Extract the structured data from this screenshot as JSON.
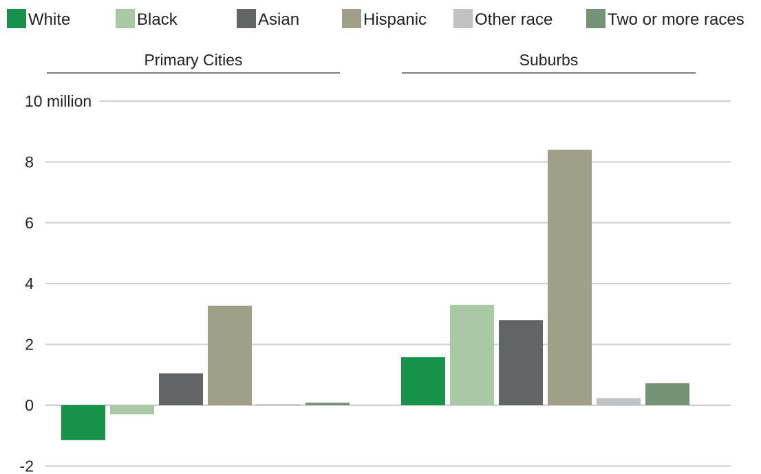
{
  "chart_data": {
    "type": "bar",
    "ylabel": "",
    "xlabel": "",
    "ylim": [
      -2,
      10
    ],
    "y_ticks": [
      -2,
      0,
      2,
      4,
      6,
      8,
      10
    ],
    "y_tick_labels": [
      "-2",
      "0",
      "2",
      "4",
      "6",
      "8",
      "10 million"
    ],
    "grid": true,
    "legend_position": "top",
    "groups": [
      "Primary Cities",
      "Suburbs"
    ],
    "series": [
      {
        "name": "White",
        "color": "#16924a",
        "values": [
          -1.15,
          1.58
        ]
      },
      {
        "name": "Black",
        "color": "#a9c9a4",
        "values": [
          -0.3,
          3.3
        ]
      },
      {
        "name": "Asian",
        "color": "#636466",
        "values": [
          1.05,
          2.8
        ]
      },
      {
        "name": "Hispanic",
        "color": "#a09f87",
        "values": [
          3.27,
          8.4
        ]
      },
      {
        "name": "Other race",
        "color": "#c1c2c4",
        "values": [
          0.04,
          0.23
        ]
      },
      {
        "name": "Two or more races",
        "color": "#739374",
        "values": [
          0.08,
          0.72
        ]
      }
    ]
  }
}
